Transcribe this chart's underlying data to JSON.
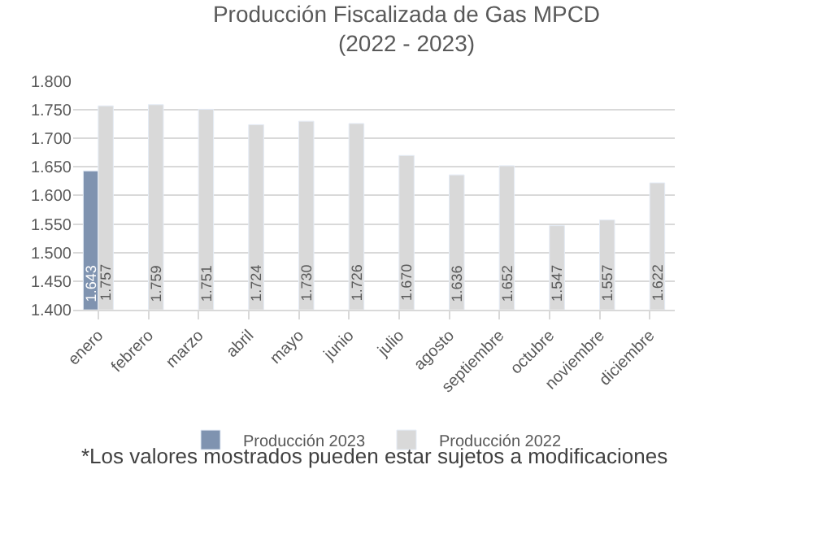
{
  "chart_data": {
    "type": "bar",
    "title": "Producción Fiscalizada de Gas MPCD\n(2022 - 2023)",
    "categories": [
      "enero",
      "febrero",
      "marzo",
      "abril",
      "mayo",
      "junio",
      "julio",
      "agosto",
      "septiembre",
      "octubre",
      "noviembre",
      "diciembre"
    ],
    "series": [
      {
        "name": "Producción 2023",
        "color": "#7f93b0",
        "values": [
          1643,
          null,
          null,
          null,
          null,
          null,
          null,
          null,
          null,
          null,
          null,
          null
        ],
        "value_labels": [
          "1.643",
          null,
          null,
          null,
          null,
          null,
          null,
          null,
          null,
          null,
          null,
          null
        ]
      },
      {
        "name": "Producción 2022",
        "color": "#d9d9d9",
        "values": [
          1757,
          1759,
          1751,
          1724,
          1730,
          1726,
          1670,
          1636,
          1652,
          1547,
          1557,
          1622
        ],
        "value_labels": [
          "1.757",
          "1.759",
          "1.751",
          "1.724",
          "1.730",
          "1.726",
          "1.670",
          "1.636",
          "1.652",
          "1.547",
          "1.557",
          "1.622"
        ]
      }
    ],
    "ylim": [
      1400,
      1800
    ],
    "yticks": [
      {
        "value": 1400,
        "label": "1.400"
      },
      {
        "value": 1450,
        "label": "1.450"
      },
      {
        "value": 1500,
        "label": "1.500"
      },
      {
        "value": 1550,
        "label": "1.550"
      },
      {
        "value": 1600,
        "label": "1.600"
      },
      {
        "value": 1650,
        "label": "1.650"
      },
      {
        "value": 1700,
        "label": "1.700"
      },
      {
        "value": 1750,
        "label": "1.750"
      },
      {
        "value": 1800,
        "label": "1.800"
      }
    ],
    "grid": "y",
    "legend": "bottom",
    "annotations": [
      "*Los valores mostrados pueden estar sujetos a modificaciones"
    ]
  }
}
